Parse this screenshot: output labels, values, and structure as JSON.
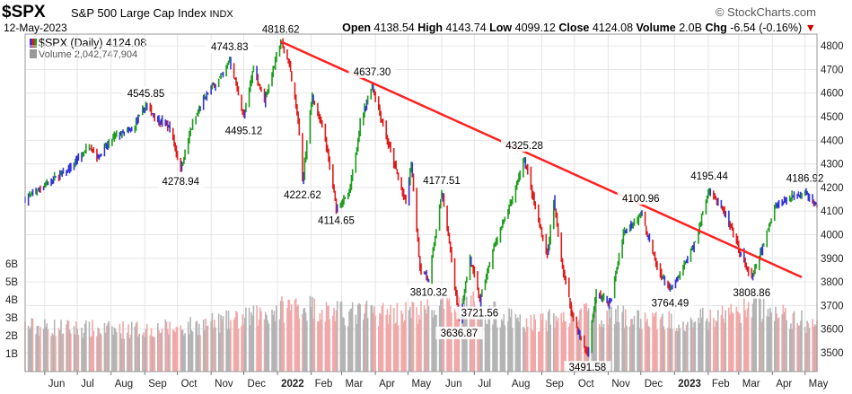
{
  "header": {
    "ticker": "$SPX",
    "name": "S&P 500 Large Cap Index",
    "exchange": "INDX",
    "date": "12-May-2023",
    "brand": "© StockCharts.com",
    "quote": [
      {
        "label": "Open",
        "value": "4138.54"
      },
      {
        "label": "High",
        "value": "4143.74"
      },
      {
        "label": "Low",
        "value": "4099.12"
      },
      {
        "label": "Close",
        "value": "4124.08"
      },
      {
        "label": "Volume",
        "value": "2.0B"
      },
      {
        "label": "Chg",
        "value": "-6.54 (-0.16%)"
      }
    ],
    "change_arrow": "▼"
  },
  "legend": {
    "price": "$SPX (Daily) 4124.08",
    "volume": "Volume 2,042,747,904"
  },
  "colors": {
    "up": "#1e9c1e",
    "down": "#e01b1b",
    "rev": "#3333dd",
    "trend": "#ff2020",
    "vol_up": "#b4b4b4",
    "vol_down": "#f0a8a8",
    "grid": "#e6e6e6"
  },
  "chart_data": {
    "type": "ohlc",
    "ylim": [
      3420,
      4850
    ],
    "y_ticks": [
      3500,
      3600,
      3700,
      3800,
      3900,
      4000,
      4100,
      4200,
      4300,
      4400,
      4500,
      4600,
      4700,
      4800
    ],
    "volume_ticks": [
      "1B",
      "2B",
      "3B",
      "4B",
      "5B",
      "6B"
    ],
    "volume_max_billion": 7.2,
    "x_months": [
      {
        "label": "Jun",
        "date": "2021-06-01"
      },
      {
        "label": "Jul",
        "date": "2021-07-01"
      },
      {
        "label": "Aug",
        "date": "2021-08-01"
      },
      {
        "label": "Sep",
        "date": "2021-09-01"
      },
      {
        "label": "Oct",
        "date": "2021-10-01"
      },
      {
        "label": "Nov",
        "date": "2021-11-01"
      },
      {
        "label": "Dec",
        "date": "2021-12-01"
      },
      {
        "label": "2022",
        "date": "2022-01-01",
        "bold": true
      },
      {
        "label": "Feb",
        "date": "2022-02-01"
      },
      {
        "label": "Mar",
        "date": "2022-03-01"
      },
      {
        "label": "Apr",
        "date": "2022-04-01"
      },
      {
        "label": "May",
        "date": "2022-05-01"
      },
      {
        "label": "Jun",
        "date": "2022-06-01"
      },
      {
        "label": "Jul",
        "date": "2022-07-01"
      },
      {
        "label": "Aug",
        "date": "2022-08-01"
      },
      {
        "label": "Sep",
        "date": "2022-09-01"
      },
      {
        "label": "Oct",
        "date": "2022-10-01"
      },
      {
        "label": "Nov",
        "date": "2022-11-01"
      },
      {
        "label": "Dec",
        "date": "2022-12-01"
      },
      {
        "label": "2023",
        "date": "2023-01-01",
        "bold": true
      },
      {
        "label": "Feb",
        "date": "2023-02-01"
      },
      {
        "label": "Mar",
        "date": "2023-03-01"
      },
      {
        "label": "Apr",
        "date": "2023-04-01"
      },
      {
        "label": "May",
        "date": "2023-05-01"
      }
    ],
    "price_path": [
      [
        "2021-05-14",
        4150
      ],
      [
        "2021-05-25",
        4190
      ],
      [
        "2021-06-10",
        4240
      ],
      [
        "2021-06-25",
        4280
      ],
      [
        "2021-07-12",
        4380
      ],
      [
        "2021-07-20",
        4330
      ],
      [
        "2021-08-05",
        4420
      ],
      [
        "2021-08-20",
        4440
      ],
      [
        "2021-09-02",
        4545.85
      ],
      [
        "2021-09-15",
        4480
      ],
      [
        "2021-09-24",
        4455
      ],
      [
        "2021-10-04",
        4278.94
      ],
      [
        "2021-10-15",
        4470
      ],
      [
        "2021-10-29",
        4605
      ],
      [
        "2021-11-12",
        4680
      ],
      [
        "2021-11-18",
        4743.83
      ],
      [
        "2021-11-26",
        4595
      ],
      [
        "2021-12-01",
        4495.12
      ],
      [
        "2021-12-10",
        4710
      ],
      [
        "2021-12-20",
        4568
      ],
      [
        "2022-01-04",
        4818.62
      ],
      [
        "2022-01-12",
        4720
      ],
      [
        "2022-01-20",
        4480
      ],
      [
        "2022-01-24",
        4222.62
      ],
      [
        "2022-02-02",
        4590
      ],
      [
        "2022-02-14",
        4400
      ],
      [
        "2022-02-24",
        4114.65
      ],
      [
        "2022-03-08",
        4170
      ],
      [
        "2022-03-18",
        4470
      ],
      [
        "2022-03-29",
        4637.3
      ],
      [
        "2022-04-12",
        4400
      ],
      [
        "2022-04-29",
        4130
      ],
      [
        "2022-05-04",
        4300
      ],
      [
        "2022-05-12",
        3860
      ],
      [
        "2022-05-20",
        3810.32
      ],
      [
        "2022-06-01",
        4177.51
      ],
      [
        "2022-06-10",
        3900
      ],
      [
        "2022-06-17",
        3636.87
      ],
      [
        "2022-06-27",
        3900
      ],
      [
        "2022-07-06",
        3721.56
      ],
      [
        "2022-07-20",
        3960
      ],
      [
        "2022-08-05",
        4150
      ],
      [
        "2022-08-16",
        4325.28
      ],
      [
        "2022-08-25",
        4130
      ],
      [
        "2022-09-06",
        3910
      ],
      [
        "2022-09-12",
        4140
      ],
      [
        "2022-09-20",
        3860
      ],
      [
        "2022-09-30",
        3640
      ],
      [
        "2022-10-13",
        3491.58
      ],
      [
        "2022-10-21",
        3750
      ],
      [
        "2022-11-03",
        3710
      ],
      [
        "2022-11-15",
        4010
      ],
      [
        "2022-11-30",
        4080
      ],
      [
        "2022-12-01",
        4100.96
      ],
      [
        "2022-12-16",
        3860
      ],
      [
        "2022-12-28",
        3764.49
      ],
      [
        "2023-01-05",
        3820
      ],
      [
        "2023-01-20",
        3970
      ],
      [
        "2023-02-02",
        4195.44
      ],
      [
        "2023-02-16",
        4090
      ],
      [
        "2023-03-01",
        3940
      ],
      [
        "2023-03-13",
        3808.86
      ],
      [
        "2023-03-24",
        3960
      ],
      [
        "2023-04-03",
        4120
      ],
      [
        "2023-04-18",
        4160
      ],
      [
        "2023-05-01",
        4186.92
      ],
      [
        "2023-05-08",
        4130
      ],
      [
        "2023-05-12",
        4124.08
      ]
    ],
    "annotations": [
      {
        "date": "2021-09-02",
        "value": "4545.85",
        "pos": "above"
      },
      {
        "date": "2021-10-04",
        "value": "4278.94",
        "pos": "below"
      },
      {
        "date": "2021-11-18",
        "value": "4743.83",
        "pos": "above"
      },
      {
        "date": "2021-12-01",
        "value": "4495.12",
        "pos": "below"
      },
      {
        "date": "2022-01-04",
        "value": "4818.62",
        "pos": "above"
      },
      {
        "date": "2022-01-24",
        "value": "4222.62",
        "pos": "below"
      },
      {
        "date": "2022-02-24",
        "value": "4114.65",
        "pos": "below"
      },
      {
        "date": "2022-03-29",
        "value": "4637.30",
        "pos": "above"
      },
      {
        "date": "2022-05-20",
        "value": "3810.32",
        "pos": "below"
      },
      {
        "date": "2022-06-01",
        "value": "4177.51",
        "pos": "above"
      },
      {
        "date": "2022-06-17",
        "value": "3636.87",
        "pos": "below"
      },
      {
        "date": "2022-07-06",
        "value": "3721.56",
        "pos": "below"
      },
      {
        "date": "2022-08-16",
        "value": "4325.28",
        "pos": "above"
      },
      {
        "date": "2022-10-13",
        "value": "3491.58",
        "pos": "below"
      },
      {
        "date": "2022-12-01",
        "value": "4100.96",
        "pos": "above"
      },
      {
        "date": "2022-12-28",
        "value": "3764.49",
        "pos": "below"
      },
      {
        "date": "2023-02-02",
        "value": "4195.44",
        "pos": "above"
      },
      {
        "date": "2023-03-13",
        "value": "3808.86",
        "pos": "below"
      },
      {
        "date": "2023-05-01",
        "value": "4186.92",
        "pos": "above"
      }
    ],
    "trendline": [
      [
        "2022-01-04",
        4818.62
      ],
      [
        "2023-04-28",
        3820
      ]
    ],
    "volume_path": [
      [
        "2021-05-14",
        2.5
      ],
      [
        "2021-08-01",
        2.3
      ],
      [
        "2021-10-01",
        2.4
      ],
      [
        "2021-12-01",
        2.9
      ],
      [
        "2022-01-20",
        3.7
      ],
      [
        "2022-03-01",
        3.2
      ],
      [
        "2022-05-15",
        3.3
      ],
      [
        "2022-06-20",
        3.9
      ],
      [
        "2022-08-15",
        2.6
      ],
      [
        "2022-10-15",
        3.2
      ],
      [
        "2022-12-15",
        2.8
      ],
      [
        "2023-02-01",
        2.9
      ],
      [
        "2023-03-15",
        3.6
      ],
      [
        "2023-05-12",
        2.5
      ]
    ]
  }
}
